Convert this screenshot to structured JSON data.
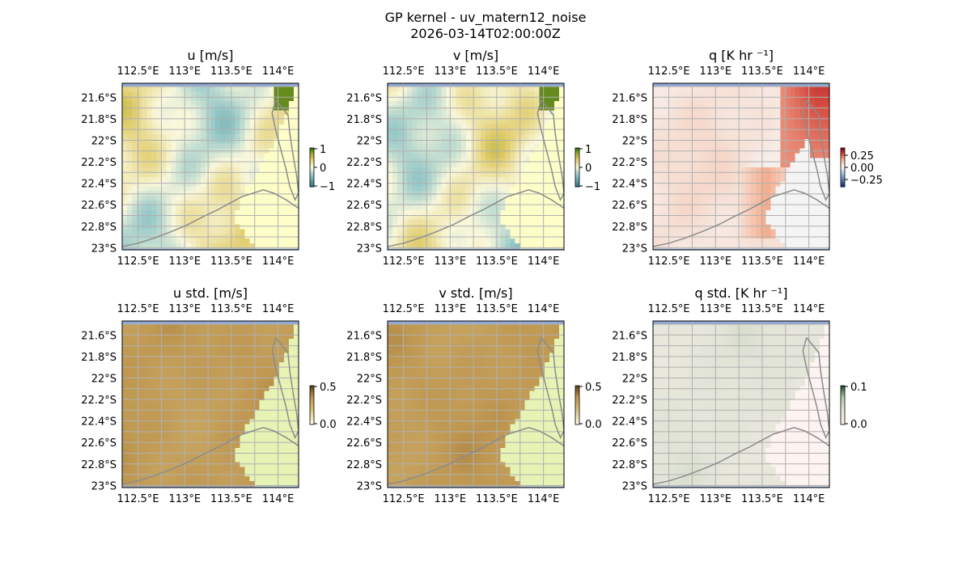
{
  "figure": {
    "title_line1": "GP kernel - uv_matern12_noise",
    "title_line2": "2026-03-14T02:00:00Z"
  },
  "colors": {
    "ocean": "#8fa8d6",
    "land_default": "#fefec8",
    "coast": "#8c8c8c",
    "grid": "#b0b0b0",
    "frame": "#000000"
  },
  "chart_data": [
    {
      "type": "heatmap",
      "title": "u [m/s]",
      "lon_ticks": [
        "112.5°E",
        "113°E",
        "113.5°E",
        "114°E"
      ],
      "lat_ticks": [
        "21.6°S",
        "21.8°S",
        "22°S",
        "22.2°S",
        "22.4°S",
        "22.6°S",
        "22.8°S",
        "23°S"
      ],
      "colorbar": {
        "ticks": [
          "1",
          "0",
          "−1"
        ],
        "cmap": "diverging_teal_yellow_green",
        "range": [
          -1,
          1
        ]
      },
      "land_color": "#fefec8"
    },
    {
      "type": "heatmap",
      "title": "v [m/s]",
      "lon_ticks": [
        "112.5°E",
        "113°E",
        "113.5°E",
        "114°E"
      ],
      "lat_ticks": [
        "21.6°S",
        "21.8°S",
        "22°S",
        "22.2°S",
        "22.4°S",
        "22.6°S",
        "22.8°S",
        "23°S"
      ],
      "colorbar": {
        "ticks": [
          "1",
          "0",
          "−1"
        ],
        "cmap": "diverging_teal_yellow_green",
        "range": [
          -1,
          1
        ]
      },
      "land_color": "#fefec8"
    },
    {
      "type": "heatmap",
      "title": "q [K hr ⁻¹]",
      "lon_ticks": [
        "112.5°E",
        "113°E",
        "113.5°E",
        "114°E"
      ],
      "lat_ticks": [
        "21.6°S",
        "21.8°S",
        "22°S",
        "22.2°S",
        "22.4°S",
        "22.6°S",
        "22.8°S",
        "23°S"
      ],
      "colorbar": {
        "ticks": [
          "0.25",
          "0.00",
          "−0.25"
        ],
        "cmap": "RdBu_r",
        "range": [
          -0.35,
          0.35
        ]
      },
      "land_color": "#f4f4f4"
    },
    {
      "type": "heatmap",
      "title": "u std. [m/s]",
      "lon_ticks": [
        "112.5°E",
        "113°E",
        "113.5°E",
        "114°E"
      ],
      "lat_ticks": [
        "21.6°S",
        "21.8°S",
        "22°S",
        "22.2°S",
        "22.4°S",
        "22.6°S",
        "22.8°S",
        "23°S"
      ],
      "colorbar": {
        "ticks": [
          "0.5",
          "0.0"
        ],
        "cmap": "brown_std",
        "range": [
          0,
          0.5
        ]
      },
      "land_color": "#e6f3b4"
    },
    {
      "type": "heatmap",
      "title": "v std. [m/s]",
      "lon_ticks": [
        "112.5°E",
        "113°E",
        "113.5°E",
        "114°E"
      ],
      "lat_ticks": [
        "21.6°S",
        "21.8°S",
        "22°S",
        "22.2°S",
        "22.4°S",
        "22.6°S",
        "22.8°S",
        "23°S"
      ],
      "colorbar": {
        "ticks": [
          "0.5",
          "0.0"
        ],
        "cmap": "brown_std",
        "range": [
          0,
          0.5
        ]
      },
      "land_color": "#e6f3b4"
    },
    {
      "type": "heatmap",
      "title": "q std. [K hr ⁻¹]",
      "lon_ticks": [
        "112.5°E",
        "113°E",
        "113.5°E",
        "114°E"
      ],
      "lat_ticks": [
        "21.6°S",
        "21.8°S",
        "22°S",
        "22.2°S",
        "22.4°S",
        "22.6°S",
        "22.8°S",
        "23°S"
      ],
      "colorbar": {
        "ticks": [
          "0.1",
          "0.0"
        ],
        "cmap": "green_std",
        "range": [
          0,
          0.1
        ]
      },
      "land_color": "#fdf3f0"
    }
  ]
}
